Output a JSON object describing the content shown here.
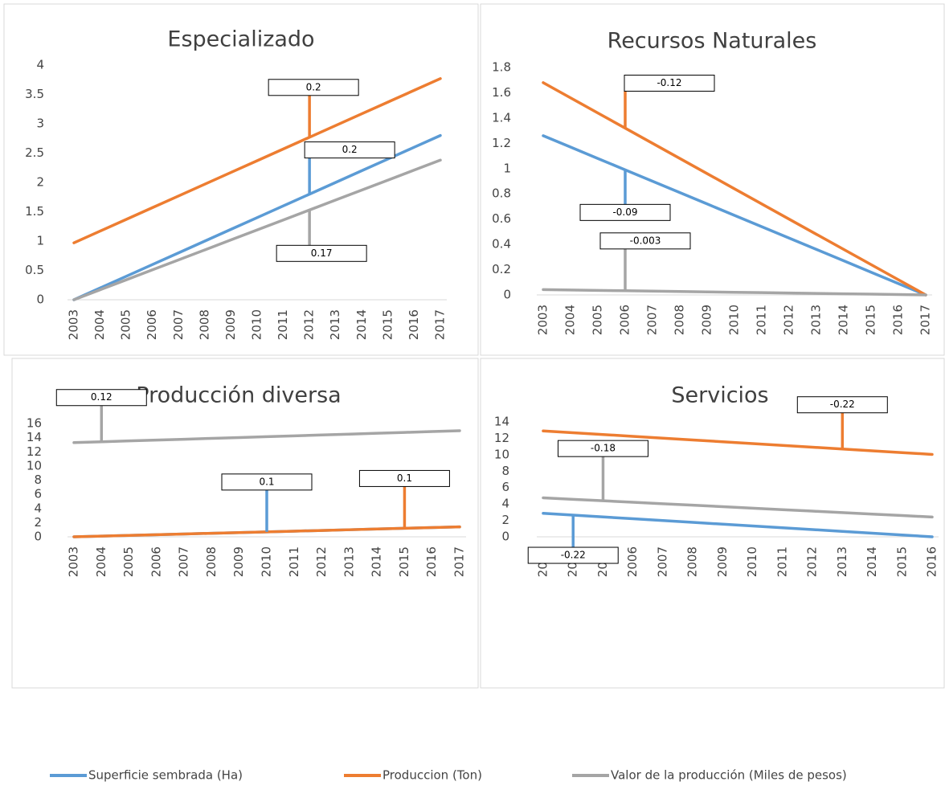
{
  "chart_data": [
    {
      "type": "line",
      "title": "Especializado",
      "categories": [
        "2003",
        "2004",
        "2005",
        "2006",
        "2007",
        "2008",
        "2009",
        "2010",
        "2011",
        "2012",
        "2013",
        "2014",
        "2015",
        "2016",
        "2017"
      ],
      "ylim": [
        0,
        4
      ],
      "yticks": [
        0,
        0.5,
        1,
        1.5,
        2,
        2.5,
        3,
        3.5,
        4
      ],
      "grid": false,
      "series": [
        {
          "name": "Superficie sembrada (Ha)",
          "color": "#5b9bd5",
          "values": [
            0,
            0.2,
            0.4,
            0.6,
            0.8,
            1,
            1.2,
            1.4,
            1.6,
            1.8,
            2,
            2.2,
            2.4,
            2.6,
            2.8
          ]
        },
        {
          "name": "Produccion (Ton)",
          "color": "#ed7d31",
          "values": [
            0.97,
            1.17,
            1.37,
            1.57,
            1.77,
            1.97,
            2.17,
            2.37,
            2.57,
            2.77,
            2.97,
            3.17,
            3.37,
            3.57,
            3.77
          ]
        },
        {
          "name": "Valor de la producción (Miles de pesos)",
          "color": "#a5a5a5",
          "values": [
            0,
            0.17,
            0.34,
            0.51,
            0.68,
            0.85,
            1.02,
            1.19,
            1.36,
            1.53,
            1.7,
            1.87,
            2.04,
            2.21,
            2.38
          ]
        }
      ],
      "annotations": [
        {
          "text": "0.2",
          "series": 1,
          "x": "2012"
        },
        {
          "text": "0.2",
          "series": 0,
          "x": "2012"
        },
        {
          "text": "0.17",
          "series": 2,
          "x": "2012"
        }
      ]
    },
    {
      "type": "line",
      "title": "Recursos Naturales",
      "categories": [
        "2003",
        "2004",
        "2005",
        "2006",
        "2007",
        "2008",
        "2009",
        "2010",
        "2011",
        "2012",
        "2013",
        "2014",
        "2015",
        "2016",
        "2017"
      ],
      "ylim": [
        0,
        1.8
      ],
      "yticks": [
        0,
        0.2,
        0.4,
        0.6,
        0.8,
        1,
        1.2,
        1.4,
        1.6,
        1.8
      ],
      "grid": false,
      "series": [
        {
          "name": "Superficie sembrada (Ha)",
          "color": "#5b9bd5",
          "values": [
            1.26,
            1.17,
            1.08,
            0.99,
            0.9,
            0.81,
            0.72,
            0.63,
            0.54,
            0.45,
            0.36,
            0.27,
            0.18,
            0.09,
            0
          ]
        },
        {
          "name": "Produccion (Ton)",
          "color": "#ed7d31",
          "values": [
            1.68,
            1.56,
            1.44,
            1.32,
            1.2,
            1.08,
            0.96,
            0.84,
            0.72,
            0.6,
            0.48,
            0.36,
            0.24,
            0.12,
            0
          ]
        },
        {
          "name": "Valor de la producción (Miles de pesos)",
          "color": "#a5a5a5",
          "values": [
            0.042,
            0.039,
            0.036,
            0.033,
            0.03,
            0.027,
            0.024,
            0.021,
            0.018,
            0.015,
            0.012,
            0.009,
            0.006,
            0.003,
            0
          ]
        }
      ],
      "annotations": [
        {
          "text": "-0.12",
          "series": 1,
          "x": "2006"
        },
        {
          "text": "-0.09",
          "series": 0,
          "x": "2006"
        },
        {
          "text": "-0.003",
          "series": 2,
          "x": "2006"
        }
      ]
    },
    {
      "type": "line",
      "title": "Producción diversa",
      "categories": [
        "2003",
        "2004",
        "2005",
        "2006",
        "2007",
        "2008",
        "2009",
        "2010",
        "2011",
        "2012",
        "2013",
        "2014",
        "2015",
        "2016",
        "2017"
      ],
      "ylim": [
        0,
        16
      ],
      "yticks": [
        0,
        2,
        4,
        6,
        8,
        10,
        12,
        14,
        16
      ],
      "grid": false,
      "series": [
        {
          "name": "Superficie sembrada (Ha)",
          "color": "#5b9bd5",
          "values": [
            0,
            0.1,
            0.2,
            0.3,
            0.4,
            0.5,
            0.6,
            0.7,
            0.8,
            0.9,
            1,
            1.1,
            1.2,
            1.3,
            1.4
          ]
        },
        {
          "name": "Produccion (Ton)",
          "color": "#ed7d31",
          "values": [
            0,
            0.1,
            0.2,
            0.3,
            0.4,
            0.5,
            0.6,
            0.7,
            0.8,
            0.9,
            1,
            1.1,
            1.2,
            1.3,
            1.4
          ]
        },
        {
          "name": "Valor de la producción (Miles de pesos)",
          "color": "#a5a5a5",
          "values": [
            13.3,
            13.42,
            13.54,
            13.66,
            13.78,
            13.9,
            14.02,
            14.14,
            14.26,
            14.38,
            14.5,
            14.62,
            14.74,
            14.86,
            14.98
          ]
        }
      ],
      "annotations": [
        {
          "text": "0.12",
          "series": 2,
          "x": "2004"
        },
        {
          "text": "0.1",
          "series": 0,
          "x": "2010"
        },
        {
          "text": "0.1",
          "series": 1,
          "x": "2015"
        }
      ]
    },
    {
      "type": "line",
      "title": "Servicios",
      "categories": [
        "2003",
        "2004",
        "2005",
        "2006",
        "2007",
        "2008",
        "2009",
        "2010",
        "2011",
        "2012",
        "2013",
        "2014",
        "2015",
        "2016"
      ],
      "ylim": [
        0,
        14
      ],
      "yticks": [
        0,
        2,
        4,
        6,
        8,
        10,
        12,
        14
      ],
      "grid": false,
      "series": [
        {
          "name": "Superficie sembrada (Ha)",
          "color": "#5b9bd5",
          "values": [
            2.86,
            2.64,
            2.42,
            2.2,
            1.98,
            1.76,
            1.54,
            1.32,
            1.1,
            0.88,
            0.66,
            0.44,
            0.22,
            0
          ]
        },
        {
          "name": "Produccion (Ton)",
          "color": "#ed7d31",
          "values": [
            12.9,
            12.68,
            12.46,
            12.24,
            12.02,
            11.8,
            11.58,
            11.36,
            11.14,
            10.92,
            10.7,
            10.48,
            10.26,
            10.04
          ]
        },
        {
          "name": "Valor de la producción (Miles de pesos)",
          "color": "#a5a5a5",
          "values": [
            4.75,
            4.57,
            4.39,
            4.21,
            4.03,
            3.85,
            3.67,
            3.49,
            3.31,
            3.13,
            2.95,
            2.77,
            2.59,
            2.41
          ]
        }
      ],
      "annotations": [
        {
          "text": "-0.22",
          "series": 1,
          "x": "2013"
        },
        {
          "text": "-0.18",
          "series": 2,
          "x": "2005"
        },
        {
          "text": "-0.22",
          "series": 0,
          "x": "2004"
        }
      ]
    }
  ]
}
